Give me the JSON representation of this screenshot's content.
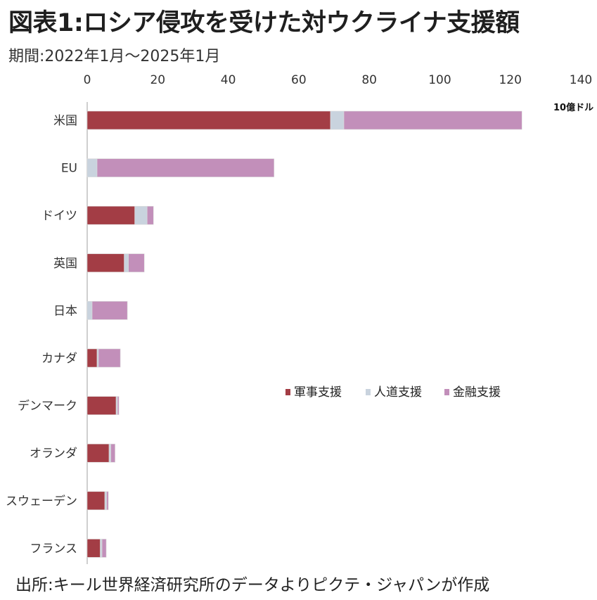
{
  "title": "図表1:ロシア侵攻を受けた対ウクライナ支援額",
  "subtitle": "期間:2022年1月〜2025年1月",
  "source": "出所:キール世界経済研究所のデータよりピクテ・ジャパンが作成",
  "chart_data": {
    "type": "bar",
    "orientation": "horizontal",
    "stacked": true,
    "unit_label": "10億ドル",
    "xlim": [
      0,
      140
    ],
    "xticks": [
      0,
      20,
      40,
      60,
      80,
      100,
      120,
      140
    ],
    "categories": [
      "米国",
      "EU",
      "ドイツ",
      "英国",
      "日本",
      "カナダ",
      "デンマーク",
      "オランダ",
      "スウェーデン",
      "フランス"
    ],
    "series": [
      {
        "name": "軍事支援",
        "color": "#a33d45",
        "values": [
          69,
          0,
          13.5,
          10.5,
          0,
          2.8,
          8.2,
          6.2,
          5.0,
          3.7
        ]
      },
      {
        "name": "人道支援",
        "color": "#c9d3de",
        "values": [
          3.8,
          2.8,
          3.5,
          1.2,
          1.4,
          0.4,
          0.4,
          0.5,
          0.5,
          0.5
        ]
      },
      {
        "name": "金融支援",
        "color": "#c28fba",
        "values": [
          50.5,
          50.2,
          1.8,
          4.5,
          10.0,
          6.2,
          0.4,
          1.2,
          0.5,
          1.2
        ]
      }
    ],
    "legend_position": "center-right",
    "grid": false
  }
}
